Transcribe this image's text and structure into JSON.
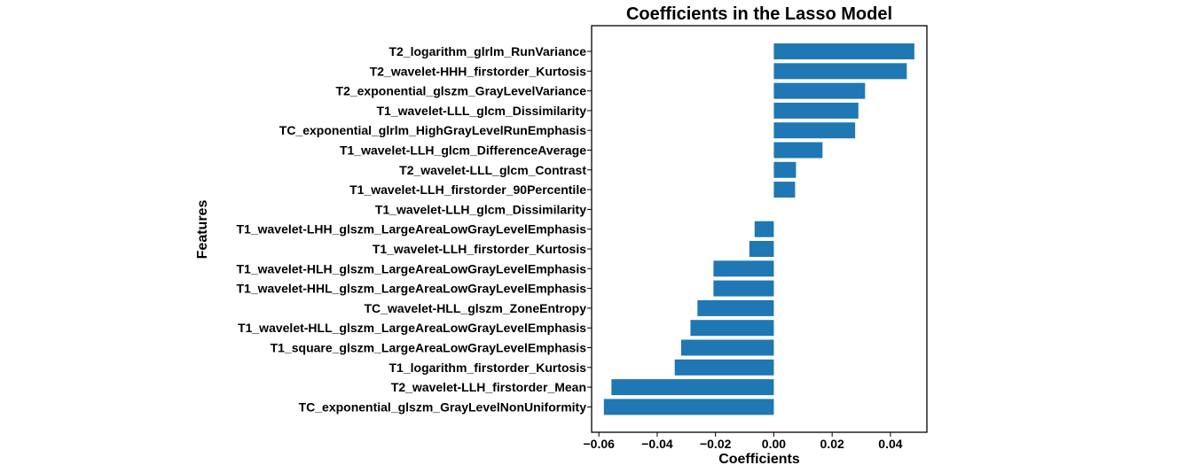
{
  "chart_data": {
    "type": "bar",
    "orientation": "horizontal",
    "title": "Coefficients in the Lasso Model",
    "xlabel": "Coefficients",
    "ylabel": "Features",
    "xlim": [
      -0.0625,
      0.0525
    ],
    "xticks": [
      -0.06,
      -0.04,
      -0.02,
      0.0,
      0.02,
      0.04
    ],
    "xtick_labels": [
      "−0.06",
      "−0.04",
      "−0.02",
      "0.00",
      "0.02",
      "0.04"
    ],
    "grid": false,
    "bar_color": "#1f77b4",
    "categories": [
      "T2_logarithm_glrlm_RunVariance",
      "T2_wavelet-HHH_firstorder_Kurtosis",
      "T2_exponential_glszm_GrayLevelVariance",
      "T1_wavelet-LLL_glcm_Dissimilarity",
      "TC_exponential_glrlm_HighGrayLevelRunEmphasis",
      "T1_wavelet-LLH_glcm_DifferenceAverage",
      "T2_wavelet-LLL_glcm_Contrast",
      "T1_wavelet-LLH_firstorder_90Percentile",
      "T1_wavelet-LLH_glcm_Dissimilarity",
      "T1_wavelet-LHH_glszm_LargeAreaLowGrayLevelEmphasis",
      "T1_wavelet-LLH_firstorder_Kurtosis",
      "T1_wavelet-HLH_glszm_LargeAreaLowGrayLevelEmphasis",
      "T1_wavelet-HHL_glszm_LargeAreaLowGrayLevelEmphasis",
      "TC_wavelet-HLL_glszm_ZoneEntropy",
      "T1_wavelet-HLL_glszm_LargeAreaLowGrayLevelEmphasis",
      "T1_square_glszm_LargeAreaLowGrayLevelEmphasis",
      "T1_logarithm_firstorder_Kurtosis",
      "T2_wavelet-LLH_firstorder_Mean",
      "TC_exponential_glszm_GrayLevelNonUniformity"
    ],
    "values": [
      0.0482,
      0.0456,
      0.0313,
      0.029,
      0.0279,
      0.0167,
      0.0076,
      0.0073,
      0.0,
      -0.0066,
      -0.0084,
      -0.0207,
      -0.0207,
      -0.0262,
      -0.0286,
      -0.0318,
      -0.034,
      -0.0557,
      -0.0583
    ]
  }
}
